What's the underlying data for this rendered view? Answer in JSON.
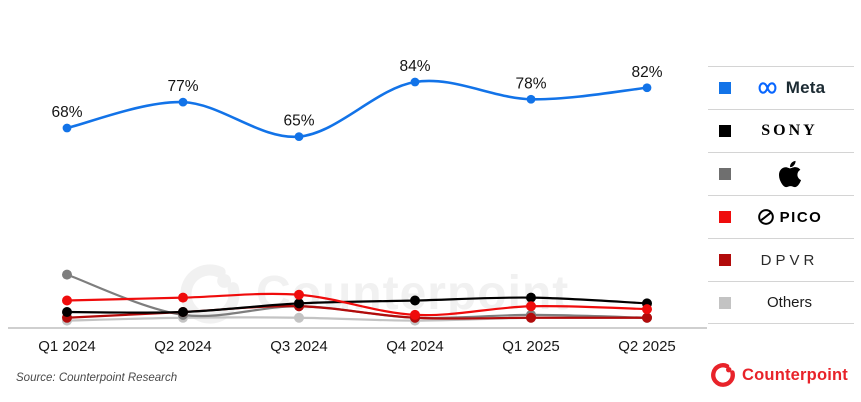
{
  "chart_data": {
    "type": "line",
    "title": "",
    "categories": [
      "Q1 2024",
      "Q2 2024",
      "Q3 2024",
      "Q4 2024",
      "Q1 2025",
      "Q2 2025"
    ],
    "unit": "%",
    "ylim": [
      0,
      100
    ],
    "grid": false,
    "legend_position": "right",
    "series": [
      {
        "name": "Meta",
        "color": "#1273e8",
        "values": [
          68,
          77,
          65,
          84,
          78,
          82
        ],
        "point_labels": [
          "68%",
          "77%",
          "65%",
          "84%",
          "78%",
          "82%"
        ]
      },
      {
        "name": "Sony",
        "color": "#000000",
        "values": [
          4,
          4,
          7,
          8,
          9,
          7
        ]
      },
      {
        "name": "Apple",
        "color": "#7e7e7e",
        "values": [
          17,
          3,
          6,
          2,
          3,
          2
        ]
      },
      {
        "name": "PICO",
        "color": "#ef0c0c",
        "values": [
          8,
          9,
          10,
          3,
          6,
          5
        ]
      },
      {
        "name": "DPVR",
        "color": "#b20b0b",
        "values": [
          2,
          4,
          6,
          2,
          2,
          2
        ]
      },
      {
        "name": "Others",
        "color": "#c3c3c3",
        "values": [
          1,
          2,
          2,
          1,
          2,
          2
        ]
      }
    ]
  },
  "legend": {
    "items": [
      {
        "label": "Meta",
        "color": "#1273e8"
      },
      {
        "label": "SONY",
        "color": "#000000"
      },
      {
        "label": "Apple",
        "color": "#6f6f6f"
      },
      {
        "label": "PICO",
        "color": "#ef0c0c"
      },
      {
        "label": "DPVR",
        "color": "#b20b0b"
      },
      {
        "label": "Others",
        "color": "#c3c3c3"
      }
    ]
  },
  "x_axis": {
    "labels": [
      "Q1 2024",
      "Q2 2024",
      "Q3 2024",
      "Q4 2024",
      "Q1 2025",
      "Q2 2025"
    ]
  },
  "source": {
    "text": "Source: Counterpoint Research"
  },
  "watermark": {
    "text": "Counterpoint"
  },
  "footer": {
    "logo_text": "Counterpoint"
  },
  "colors": {
    "meta_logo_blue": "#0866ff",
    "meta_wordmark": "#1c2b33",
    "counterpoint_red": "#e8232a",
    "watermark_gray": "#f1f1f1",
    "axis_line": "#bfbfbf",
    "label_text": "#141414"
  }
}
